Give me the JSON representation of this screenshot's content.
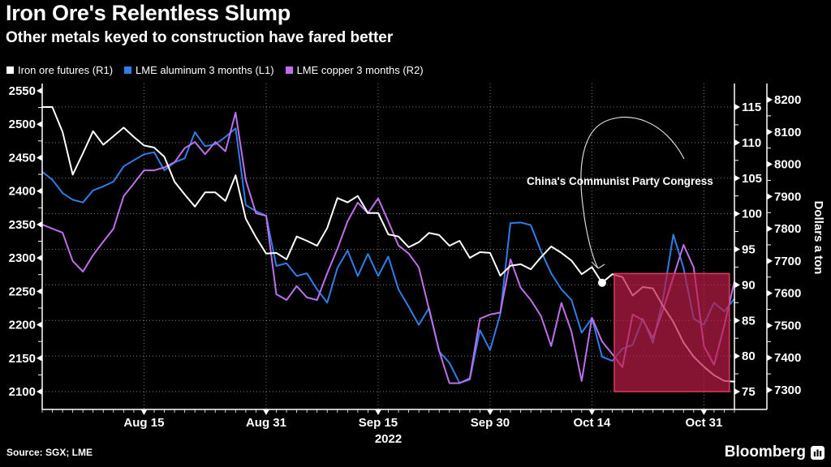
{
  "header": {
    "title": "Iron Ore's Relentless Slump",
    "subtitle": "Other metals keyed to construction have fared better"
  },
  "footer": {
    "source": "Source: SGX; LME",
    "brand": "Bloomberg"
  },
  "chart_data": {
    "type": "line",
    "title": "Iron Ore's Relentless Slump",
    "subtitle": "Other metals keyed to construction have fared better",
    "legend_position": "top-left",
    "grid": true,
    "dates": [
      "Aug 1",
      "Aug 2",
      "Aug 3",
      "Aug 4",
      "Aug 5",
      "Aug 8",
      "Aug 9",
      "Aug 10",
      "Aug 11",
      "Aug 12",
      "Aug 15",
      "Aug 16",
      "Aug 17",
      "Aug 18",
      "Aug 19",
      "Aug 22",
      "Aug 23",
      "Aug 24",
      "Aug 25",
      "Aug 26",
      "Aug 29",
      "Aug 30",
      "Aug 31",
      "Sep 1",
      "Sep 2",
      "Sep 5",
      "Sep 6",
      "Sep 7",
      "Sep 8",
      "Sep 9",
      "Sep 12",
      "Sep 13",
      "Sep 14",
      "Sep 15",
      "Sep 16",
      "Sep 19",
      "Sep 20",
      "Sep 21",
      "Sep 22",
      "Sep 23",
      "Sep 26",
      "Sep 27",
      "Sep 28",
      "Sep 29",
      "Sep 30",
      "Oct 3",
      "Oct 4",
      "Oct 5",
      "Oct 6",
      "Oct 7",
      "Oct 10",
      "Oct 11",
      "Oct 12",
      "Oct 13",
      "Oct 14",
      "Oct 17",
      "Oct 18",
      "Oct 19",
      "Oct 20",
      "Oct 21",
      "Oct 24",
      "Oct 25",
      "Oct 26",
      "Oct 27",
      "Oct 28",
      "Oct 31",
      "Nov 1",
      "Nov 2",
      "Nov 3"
    ],
    "series": [
      {
        "key": "iron_ore",
        "name": "Iron ore futures (R1)",
        "axis": "R1",
        "color": "#FFFFFF",
        "unit": "USD/ton",
        "values": [
          115.0,
          115.0,
          111.5,
          105.5,
          108.5,
          111.6,
          109.7,
          110.9,
          112.1,
          110.8,
          109.6,
          109.3,
          108.0,
          104.5,
          102.7,
          101.0,
          103.0,
          103.0,
          101.8,
          105.4,
          99.3,
          96.7,
          94.4,
          94.5,
          93.6,
          96.8,
          96.2,
          95.5,
          98.0,
          102.2,
          101.6,
          102.5,
          100.1,
          100.1,
          97.1,
          96.8,
          95.3,
          96.0,
          97.3,
          97.0,
          95.5,
          96.2,
          93.8,
          94.6,
          94.5,
          91.3,
          92.7,
          92.9,
          92.2,
          93.9,
          95.4,
          94.5,
          93.4,
          91.5,
          92.5,
          90.3,
          91.5,
          91.1,
          88.5,
          89.7,
          89.5,
          87.0,
          84.8,
          81.9,
          79.9,
          78.5,
          77.3,
          76.5,
          76.4
        ]
      },
      {
        "key": "aluminum",
        "name": "LME aluminum 3 months (L1)",
        "axis": "L1",
        "color": "#2E7DE8",
        "unit": "USD/ton",
        "values": [
          2429,
          2417,
          2397,
          2387,
          2383,
          2401,
          2407,
          2414,
          2437,
          2446,
          2455,
          2458,
          2431,
          2443,
          2449,
          2488,
          2467,
          2470,
          2481,
          2494,
          2379,
          2370,
          2363,
          2288,
          2292,
          2273,
          2277,
          2253,
          2233,
          2285,
          2311,
          2273,
          2306,
          2273,
          2302,
          2253,
          2227,
          2200,
          2225,
          2160,
          2143,
          2113,
          2118,
          2192,
          2162,
          2216,
          2352,
          2353,
          2349,
          2310,
          2277,
          2253,
          2237,
          2188,
          2210,
          2152,
          2146,
          2164,
          2170,
          2209,
          2173,
          2240,
          2335,
          2285,
          2209,
          2200,
          2233,
          2220,
          2239
        ]
      },
      {
        "key": "copper",
        "name": "LME copper 3 months (R2)",
        "axis": "R2",
        "color": "#BE6FEA",
        "unit": "USD/ton",
        "values": [
          7813,
          7800,
          7788,
          7700,
          7667,
          7718,
          7760,
          7800,
          7901,
          7940,
          7981,
          7981,
          7990,
          8006,
          8050,
          8069,
          8031,
          8069,
          8040,
          8160,
          7950,
          7848,
          7840,
          7597,
          7579,
          7622,
          7587,
          7579,
          7662,
          7738,
          7823,
          7881,
          7848,
          7894,
          7823,
          7748,
          7723,
          7680,
          7550,
          7421,
          7321,
          7321,
          7336,
          7521,
          7534,
          7540,
          7705,
          7617,
          7579,
          7529,
          7436,
          7570,
          7480,
          7328,
          7524,
          7450,
          7411,
          7371,
          7534,
          7517,
          7461,
          7550,
          7650,
          7750,
          7680,
          7436,
          7378,
          7500,
          7637
        ]
      }
    ],
    "axes": {
      "left": {
        "id": "L1",
        "ticks": [
          "2550",
          "2500",
          "2450",
          "2400",
          "2350",
          "2300",
          "2250",
          "2200",
          "2150",
          "2100"
        ],
        "range": [
          2100,
          2550
        ]
      },
      "right_inner": {
        "id": "R1",
        "ticks": [
          "115",
          "110",
          "105",
          "100",
          "95",
          "90",
          "85",
          "80",
          "75"
        ],
        "range": [
          75,
          115
        ]
      },
      "right_outer": {
        "id": "R2",
        "ticks": [
          "8200",
          "8100",
          "8000",
          "7900",
          "7800",
          "7700",
          "7600",
          "7500",
          "7400",
          "7300"
        ],
        "range": [
          7300,
          8200
        ],
        "title": "Dollars a ton"
      }
    },
    "x_axis": {
      "year": "2022",
      "tick_labels": [
        {
          "label": "Aug 15",
          "index": 10
        },
        {
          "label": "Aug 31",
          "index": 22
        },
        {
          "label": "Sep 15",
          "index": 33
        },
        {
          "label": "Sep 30",
          "index": 44
        },
        {
          "label": "Oct 14",
          "index": 54
        },
        {
          "label": "Oct 31",
          "index": 65
        }
      ]
    },
    "annotation": {
      "text": "China's Communist Party Congress",
      "marker_series": "iron_ore",
      "marker_index": 55,
      "marker_value": 90.3
    },
    "highlight_box": {
      "start_index": 56.2,
      "end_index": 67.5,
      "top_value_r1": 91.6,
      "bottom_value_r1": 75,
      "fill": "#BE1C48",
      "fill_opacity": 0.7,
      "stroke": "#DC3C5C"
    }
  }
}
